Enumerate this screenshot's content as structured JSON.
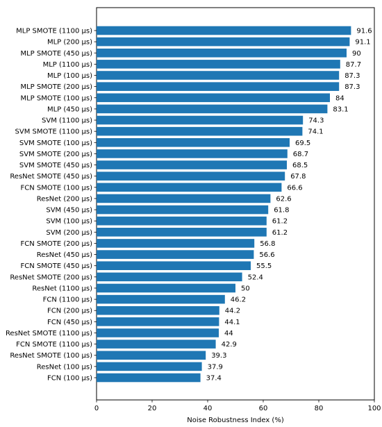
{
  "chart_data": {
    "type": "bar",
    "orientation": "horizontal",
    "title": "",
    "xlabel": "Noise Robustness Index (%)",
    "ylabel": "",
    "xlim": [
      0,
      100
    ],
    "xticks": [
      0,
      20,
      40,
      60,
      80,
      100
    ],
    "grid": false,
    "bar_color": "#1f77b4",
    "categories": [
      "MLP SMOTE (1100 µs)",
      "MLP (200 µs)",
      "MLP SMOTE (450 µs)",
      "MLP (1100 µs)",
      "MLP (100 µs)",
      "MLP SMOTE (200 µs)",
      "MLP SMOTE (100 µs)",
      "MLP (450 µs)",
      "SVM (1100 µs)",
      "SVM SMOTE (1100 µs)",
      "SVM SMOTE (100 µs)",
      "SVM SMOTE (200 µs)",
      "SVM SMOTE (450 µs)",
      "ResNet SMOTE (450 µs)",
      "FCN SMOTE (100 µs)",
      "ResNet (200 µs)",
      "SVM (450 µs)",
      "SVM (100 µs)",
      "SVM (200 µs)",
      "FCN SMOTE (200 µs)",
      "ResNet (450 µs)",
      "FCN SMOTE (450 µs)",
      "ResNet SMOTE (200 µs)",
      "ResNet (1100 µs)",
      "FCN (1100 µs)",
      "FCN (200 µs)",
      "FCN (450 µs)",
      "ResNet SMOTE (1100 µs)",
      "FCN SMOTE (1100 µs)",
      "ResNet SMOTE (100 µs)",
      "ResNet (100 µs)",
      "FCN (100 µs)"
    ],
    "values": [
      91.6,
      91.1,
      90,
      87.7,
      87.3,
      87.3,
      84,
      83.1,
      74.3,
      74.1,
      69.5,
      68.7,
      68.5,
      67.8,
      66.6,
      62.6,
      61.8,
      61.2,
      61.2,
      56.8,
      56.6,
      55.5,
      52.4,
      50,
      46.2,
      44.2,
      44.1,
      44,
      42.9,
      39.3,
      37.9,
      37.4
    ],
    "value_labels": [
      "91.6",
      "91.1",
      "90",
      "87.7",
      "87.3",
      "87.3",
      "84",
      "83.1",
      "74.3",
      "74.1",
      "69.5",
      "68.7",
      "68.5",
      "67.8",
      "66.6",
      "62.6",
      "61.8",
      "61.2",
      "61.2",
      "56.8",
      "56.6",
      "55.5",
      "52.4",
      "50",
      "46.2",
      "44.2",
      "44.1",
      "44",
      "42.9",
      "39.3",
      "37.9",
      "37.4"
    ]
  }
}
